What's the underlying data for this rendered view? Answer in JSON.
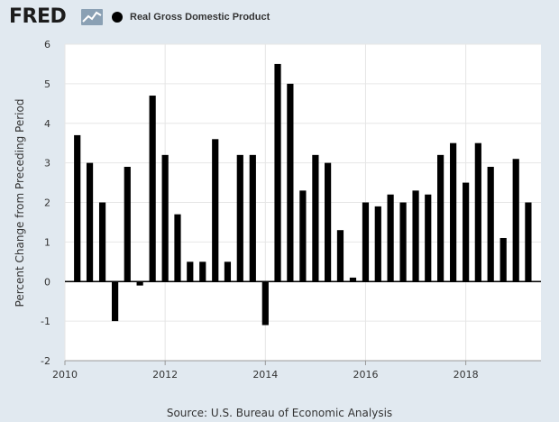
{
  "header": {
    "logo_text": "FRED",
    "legend_label": "Real Gross Domestic Product",
    "legend_color": "#000000"
  },
  "footer": {
    "source": "Source: U.S. Bureau of Economic Analysis"
  },
  "chart_data": {
    "type": "bar",
    "title": "",
    "xlabel": "",
    "ylabel": "Percent Change from Preceding Period",
    "xlim": [
      2010.0,
      2019.5
    ],
    "ylim": [
      -2,
      6
    ],
    "x_ticks": [
      2010,
      2012,
      2014,
      2016,
      2018
    ],
    "y_ticks": [
      -2,
      -1,
      0,
      1,
      2,
      3,
      4,
      5,
      6
    ],
    "grid": true,
    "legend": "top-left",
    "series": [
      {
        "name": "Real Gross Domestic Product",
        "color": "#000000",
        "points": [
          {
            "x": "2010-04-01",
            "y": 3.7
          },
          {
            "x": "2010-07-01",
            "y": 3.0
          },
          {
            "x": "2010-10-01",
            "y": 2.0
          },
          {
            "x": "2011-01-01",
            "y": -1.0
          },
          {
            "x": "2011-04-01",
            "y": 2.9
          },
          {
            "x": "2011-07-01",
            "y": -0.1
          },
          {
            "x": "2011-10-01",
            "y": 4.7
          },
          {
            "x": "2012-01-01",
            "y": 3.2
          },
          {
            "x": "2012-04-01",
            "y": 1.7
          },
          {
            "x": "2012-07-01",
            "y": 0.5
          },
          {
            "x": "2012-10-01",
            "y": 0.5
          },
          {
            "x": "2013-01-01",
            "y": 3.6
          },
          {
            "x": "2013-04-01",
            "y": 0.5
          },
          {
            "x": "2013-07-01",
            "y": 3.2
          },
          {
            "x": "2013-10-01",
            "y": 3.2
          },
          {
            "x": "2014-01-01",
            "y": -1.1
          },
          {
            "x": "2014-04-01",
            "y": 5.5
          },
          {
            "x": "2014-07-01",
            "y": 5.0
          },
          {
            "x": "2014-10-01",
            "y": 2.3
          },
          {
            "x": "2015-01-01",
            "y": 3.2
          },
          {
            "x": "2015-04-01",
            "y": 3.0
          },
          {
            "x": "2015-07-01",
            "y": 1.3
          },
          {
            "x": "2015-10-01",
            "y": 0.1
          },
          {
            "x": "2016-01-01",
            "y": 2.0
          },
          {
            "x": "2016-04-01",
            "y": 1.9
          },
          {
            "x": "2016-07-01",
            "y": 2.2
          },
          {
            "x": "2016-10-01",
            "y": 2.0
          },
          {
            "x": "2017-01-01",
            "y": 2.3
          },
          {
            "x": "2017-04-01",
            "y": 2.2
          },
          {
            "x": "2017-07-01",
            "y": 3.2
          },
          {
            "x": "2017-10-01",
            "y": 3.5
          },
          {
            "x": "2018-01-01",
            "y": 2.5
          },
          {
            "x": "2018-04-01",
            "y": 3.5
          },
          {
            "x": "2018-07-01",
            "y": 2.9
          },
          {
            "x": "2018-10-01",
            "y": 1.1
          },
          {
            "x": "2019-01-01",
            "y": 3.1
          },
          {
            "x": "2019-04-01",
            "y": 2.0
          }
        ]
      }
    ]
  }
}
